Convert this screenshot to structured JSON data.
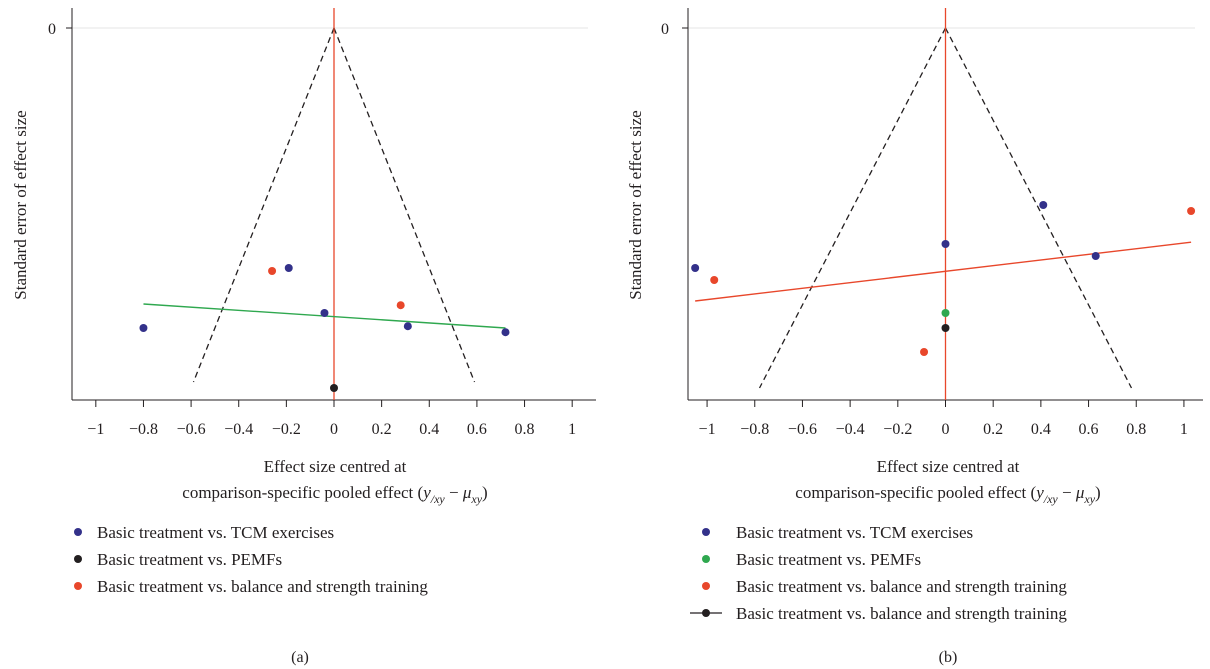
{
  "colors": {
    "tcm": "#33318a",
    "pemfs": "#231f20",
    "balance": "#e8472b",
    "green": "#2fa84f",
    "ref_line": "#e8472b",
    "funnel": "#231f20",
    "axis": "#231f20"
  },
  "chart_data": [
    {
      "type": "scatter",
      "panel": "a",
      "caption": "(a)",
      "ylabel": "Standard error of effect size",
      "xlabel_line1": "Effect size centred at",
      "xlabel_line2": "comparison-specific pooled effect",
      "xlabel_formula": {
        "y": "y",
        "y_sub": "/xy",
        "dash": " − ",
        "mu": "μ",
        "mu_sub": "xy"
      },
      "x_ticks": [
        "−1",
        "−0.8",
        "−0.6",
        "−0.4",
        "−0.2",
        "0",
        "0.2",
        "0.4",
        "0.6",
        "0.8",
        "1"
      ],
      "x_tick_values": [
        -1,
        -0.8,
        -0.6,
        -0.4,
        -0.2,
        0,
        0.2,
        0.4,
        0.6,
        0.8,
        1
      ],
      "xlim": [
        -1.1,
        1.1
      ],
      "y_ticks": [
        "0"
      ],
      "y_tick_values": [
        0
      ],
      "ylim": [
        0,
        0.62
      ],
      "y_reversed": true,
      "funnel": {
        "apex": [
          0,
          0
        ],
        "bottom_left": [
          -0.59,
          0.59
        ],
        "bottom_right": [
          0.59,
          0.59
        ]
      },
      "series": [
        {
          "name": "Basic treatment vs. TCM exercises",
          "color_key": "tcm",
          "points": [
            [
              -0.8,
              0.5
            ],
            [
              -0.19,
              0.4
            ],
            [
              -0.04,
              0.475
            ],
            [
              0.31,
              0.497
            ],
            [
              0.72,
              0.507
            ]
          ]
        },
        {
          "name": "Basic treatment vs. PEMFs",
          "color_key": "pemfs",
          "points": [
            [
              0.0,
              0.6
            ]
          ]
        },
        {
          "name": "Basic treatment vs. balance and strength training",
          "color_key": "balance",
          "points": [
            [
              -0.26,
              0.405
            ],
            [
              0.28,
              0.462
            ]
          ]
        }
      ],
      "fit_line": {
        "color_key": "green",
        "points": [
          [
            -0.8,
            0.46
          ],
          [
            0.72,
            0.5
          ]
        ]
      },
      "legend": [
        {
          "label": "Basic treatment vs. TCM exercises",
          "marker": "dot",
          "color_key": "tcm"
        },
        {
          "label": "Basic treatment vs. PEMFs",
          "marker": "dot",
          "color_key": "pemfs"
        },
        {
          "label": "Basic treatment vs. balance and strength training",
          "marker": "dot",
          "color_key": "balance"
        }
      ]
    },
    {
      "type": "scatter",
      "panel": "b",
      "caption": "(b)",
      "ylabel": "Standard error of effect size",
      "xlabel_line1": "Effect size centred at",
      "xlabel_line2": "comparison-specific pooled effect",
      "xlabel_formula": {
        "y": "y",
        "y_sub": "/xy",
        "dash": " − ",
        "mu": "μ",
        "mu_sub": "xy"
      },
      "x_ticks": [
        "−1",
        "−0.8",
        "−0.6",
        "−0.4",
        "−0.2",
        "0",
        "0.2",
        "0.4",
        "0.6",
        "0.8",
        "1"
      ],
      "x_tick_values": [
        -1,
        -0.8,
        -0.6,
        -0.4,
        -0.2,
        0,
        0.2,
        0.4,
        0.6,
        0.8,
        1
      ],
      "xlim": [
        -1.08,
        1.08
      ],
      "y_ticks": [
        "0"
      ],
      "y_tick_values": [
        0
      ],
      "ylim": [
        0,
        0.62
      ],
      "y_reversed": true,
      "funnel": {
        "apex": [
          0,
          0
        ],
        "bottom_left": [
          -0.78,
          0.6
        ],
        "bottom_right": [
          0.78,
          0.6
        ]
      },
      "series": [
        {
          "name": "Basic treatment vs. TCM exercises",
          "color_key": "tcm",
          "points": [
            [
              -1.05,
              0.4
            ],
            [
              0.0,
              0.36
            ],
            [
              0.41,
              0.295
            ],
            [
              0.63,
              0.38
            ]
          ]
        },
        {
          "name": "Basic treatment vs. PEMFs",
          "color_key": "green",
          "points": [
            [
              0.0,
              0.475
            ]
          ]
        },
        {
          "name": "Basic treatment vs. balance and strength training",
          "color_key": "balance",
          "points": [
            [
              -0.97,
              0.42
            ],
            [
              -0.09,
              0.54
            ],
            [
              1.03,
              0.305
            ]
          ]
        },
        {
          "name": "Basic treatment vs. balance and strength training",
          "color_key": "pemfs",
          "points": [
            [
              0.0,
              0.5
            ]
          ]
        }
      ],
      "fit_line": {
        "color_key": "balance",
        "points": [
          [
            -1.05,
            0.455
          ],
          [
            1.03,
            0.357
          ]
        ]
      },
      "legend": [
        {
          "label": "Basic treatment vs. TCM exercises",
          "marker": "dot",
          "color_key": "tcm"
        },
        {
          "label": "Basic treatment vs. PEMFs",
          "marker": "dot",
          "color_key": "green"
        },
        {
          "label": "Basic treatment vs. balance and strength training",
          "marker": "dot",
          "color_key": "balance"
        },
        {
          "label": "Basic treatment vs. balance and strength training",
          "marker": "line-dot",
          "color_key": "pemfs"
        }
      ]
    }
  ]
}
